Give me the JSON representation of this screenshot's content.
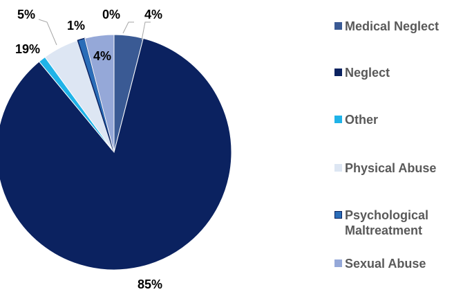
{
  "chart_data": {
    "type": "pie",
    "categories": [
      "Medical Neglect",
      "Neglect",
      "Other",
      "Physical Abuse",
      "Psychological Maltreatment",
      "Sexual Abuse"
    ],
    "values": [
      4,
      85,
      1,
      5,
      1,
      4
    ],
    "value_labels": [
      "4%",
      "85%",
      null,
      "5%",
      "1%",
      "4%"
    ],
    "colors": [
      "#3a5a94",
      "#0b2260",
      "#1fb3e8",
      "#dde6f3",
      "#2a6db8",
      "#95a8d8"
    ],
    "annotations": [
      "19%",
      "0%"
    ],
    "legend": "right"
  }
}
